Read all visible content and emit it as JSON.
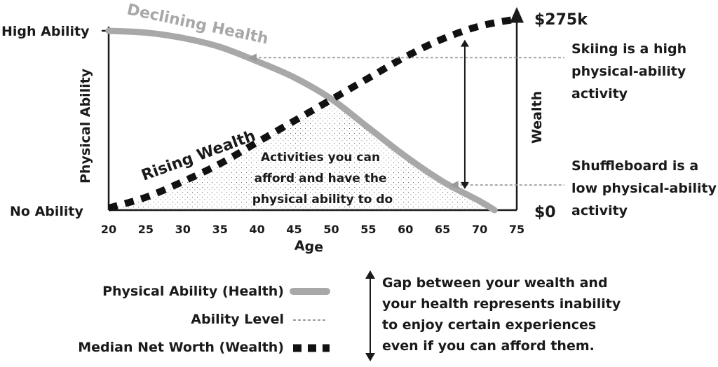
{
  "chart_data": {
    "type": "line",
    "xlabel": "Age",
    "ylabel_left": "Physical Ability",
    "ylabel_right": "Wealth",
    "x_ticks": [
      "20",
      "25",
      "30",
      "35",
      "40",
      "45",
      "50",
      "55",
      "60",
      "65",
      "70",
      "75"
    ],
    "xlim": [
      20,
      75
    ],
    "left_axis": {
      "top_label": "High Ability",
      "bottom_label": "No Ability"
    },
    "right_axis": {
      "top_label": "$275k",
      "bottom_label": "$0",
      "ylim": [
        0,
        275000
      ]
    },
    "series": [
      {
        "name": "Physical Ability (Health)",
        "curve_label": "Declining Health",
        "style": "thick-gray",
        "color": "#a8a8a8",
        "x": [
          20,
          25,
          30,
          35,
          40,
          45,
          50,
          55,
          60,
          65,
          70,
          72
        ],
        "y": [
          1.0,
          0.99,
          0.96,
          0.91,
          0.83,
          0.74,
          0.62,
          0.46,
          0.3,
          0.16,
          0.05,
          0.0
        ]
      },
      {
        "name": "Median Net Worth (Wealth)",
        "curve_label": "Rising Wealth",
        "style": "thick-dashed-black",
        "color": "#111111",
        "x": [
          20,
          25,
          30,
          35,
          40,
          45,
          50,
          55,
          60,
          65,
          70,
          75
        ],
        "y": [
          3000,
          18000,
          40000,
          65000,
          95000,
          125000,
          155000,
          185000,
          215000,
          240000,
          258000,
          268000
        ]
      }
    ],
    "annotations": {
      "shaded_area": "Activities you can afford and have the physical ability to do",
      "high_activity": "Skiing is a high physical-ability activity",
      "low_activity": "Shuffleboard is a low physical-ability activity",
      "high_activity_ability": 0.85,
      "low_activity_ability": 0.14,
      "gap_age": 68
    },
    "legend": [
      {
        "label": "Physical Ability (Health)",
        "style": "solid-gray"
      },
      {
        "label": "Ability Level",
        "style": "dotted-gray"
      },
      {
        "label": "Median Net Worth (Wealth)",
        "style": "dashed-black"
      }
    ],
    "legend_note": "Gap between your wealth and your health represents inability to enjoy certain experiences even if you can afford them."
  }
}
